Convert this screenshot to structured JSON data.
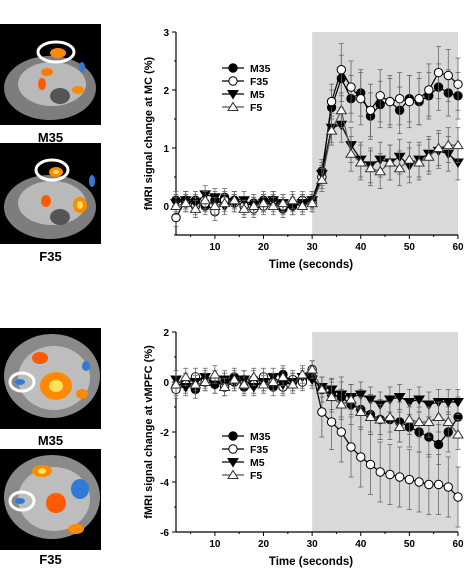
{
  "panels": [
    {
      "images": [
        {
          "label": "M35"
        },
        {
          "label": "F35"
        }
      ]
    },
    {
      "images": [
        {
          "label": "M35"
        },
        {
          "label": "F35"
        }
      ]
    }
  ],
  "colors": {
    "shade": "#d9d9d9",
    "activation_warm": "#ff8a00",
    "activation_hot": "#ffe15a",
    "activation_cold": "#2f7bd6",
    "roi_circle": "#ffffff"
  },
  "chart_data": [
    {
      "type": "line",
      "xlabel": "Time (seconds)",
      "ylabel": "fMRI signal change at MC (%)",
      "xlim": [
        2,
        60
      ],
      "ylim": [
        -0.5,
        3
      ],
      "xticks": [
        10,
        20,
        30,
        40,
        50,
        60
      ],
      "yticks": [
        0,
        1,
        2,
        3
      ],
      "shaded_region": [
        30,
        60
      ],
      "legend_position": "upper-left",
      "x": [
        2,
        4,
        6,
        8,
        10,
        12,
        14,
        16,
        18,
        20,
        22,
        24,
        26,
        28,
        30,
        32,
        34,
        36,
        38,
        40,
        42,
        44,
        46,
        48,
        50,
        52,
        54,
        56,
        58,
        60
      ],
      "series": [
        {
          "name": "M35",
          "marker": "filled-circle",
          "values": [
            0.1,
            0.05,
            0.1,
            0.0,
            0.1,
            0.15,
            0.1,
            0.0,
            0.05,
            0.1,
            0.05,
            -0.05,
            0.0,
            0.05,
            0.1,
            0.6,
            1.7,
            2.2,
            1.85,
            1.95,
            1.55,
            1.75,
            1.8,
            1.65,
            1.85,
            1.8,
            1.9,
            2.05,
            1.95,
            1.9
          ],
          "errors": [
            0.15,
            0.15,
            0.15,
            0.15,
            0.15,
            0.15,
            0.15,
            0.15,
            0.15,
            0.15,
            0.15,
            0.15,
            0.15,
            0.15,
            0.15,
            0.2,
            0.3,
            0.4,
            0.4,
            0.4,
            0.4,
            0.4,
            0.4,
            0.4,
            0.4,
            0.4,
            0.4,
            0.4,
            0.4,
            0.4
          ]
        },
        {
          "name": "F35",
          "marker": "open-circle",
          "values": [
            -0.2,
            0.1,
            0.0,
            0.05,
            -0.1,
            0.1,
            0.05,
            0.0,
            -0.05,
            0.0,
            0.1,
            0.0,
            0.05,
            0.1,
            0.05,
            0.5,
            1.8,
            2.35,
            2.05,
            1.85,
            1.65,
            1.9,
            1.8,
            1.85,
            1.8,
            1.85,
            2.0,
            2.3,
            2.25,
            2.1
          ],
          "errors": [
            0.15,
            0.15,
            0.15,
            0.15,
            0.15,
            0.15,
            0.15,
            0.15,
            0.15,
            0.15,
            0.15,
            0.15,
            0.15,
            0.15,
            0.15,
            0.2,
            0.3,
            0.45,
            0.45,
            0.45,
            0.45,
            0.45,
            0.45,
            0.45,
            0.45,
            0.45,
            0.45,
            0.45,
            0.45,
            0.45
          ]
        },
        {
          "name": "M5",
          "marker": "filled-triangle-down",
          "values": [
            0.05,
            0.1,
            0.05,
            0.2,
            0.15,
            0.0,
            0.05,
            0.1,
            0.0,
            0.05,
            0.1,
            0.05,
            0.0,
            0.05,
            0.1,
            0.55,
            1.35,
            1.4,
            1.05,
            0.8,
            0.7,
            0.8,
            0.75,
            0.85,
            0.7,
            0.8,
            0.9,
            0.95,
            0.9,
            0.75
          ],
          "errors": [
            0.15,
            0.15,
            0.15,
            0.15,
            0.15,
            0.15,
            0.15,
            0.15,
            0.15,
            0.15,
            0.15,
            0.15,
            0.15,
            0.15,
            0.15,
            0.2,
            0.25,
            0.3,
            0.3,
            0.3,
            0.3,
            0.3,
            0.3,
            0.3,
            0.3,
            0.3,
            0.3,
            0.3,
            0.3,
            0.3
          ]
        },
        {
          "name": "F5",
          "marker": "open-triangle-up",
          "values": [
            0.0,
            0.05,
            -0.05,
            0.1,
            0.0,
            0.05,
            0.1,
            -0.05,
            0.0,
            0.05,
            0.0,
            0.05,
            0.1,
            0.0,
            0.05,
            0.45,
            1.3,
            1.65,
            0.9,
            0.75,
            0.65,
            0.6,
            0.75,
            0.65,
            0.8,
            0.75,
            0.85,
            1.0,
            1.05,
            1.05
          ],
          "errors": [
            0.15,
            0.15,
            0.15,
            0.15,
            0.15,
            0.15,
            0.15,
            0.15,
            0.15,
            0.15,
            0.15,
            0.15,
            0.15,
            0.15,
            0.15,
            0.2,
            0.25,
            0.3,
            0.3,
            0.3,
            0.3,
            0.3,
            0.3,
            0.3,
            0.3,
            0.3,
            0.3,
            0.3,
            0.3,
            0.3
          ]
        }
      ]
    },
    {
      "type": "line",
      "xlabel": "Time (seconds)",
      "ylabel": "fMRI signal change at vMPFC (%)",
      "xlim": [
        2,
        60
      ],
      "ylim": [
        -6,
        2
      ],
      "xticks": [
        10,
        20,
        30,
        40,
        50,
        60
      ],
      "yticks": [
        -6,
        -4,
        -2,
        0,
        2
      ],
      "shaded_region": [
        30,
        60
      ],
      "legend_position": "lower-left",
      "x": [
        2,
        4,
        6,
        8,
        10,
        12,
        14,
        16,
        18,
        20,
        22,
        24,
        26,
        28,
        30,
        32,
        34,
        36,
        38,
        40,
        42,
        44,
        46,
        48,
        50,
        52,
        54,
        56,
        58,
        60
      ],
      "series": [
        {
          "name": "M35",
          "marker": "filled-circle",
          "values": [
            -0.2,
            0.0,
            -0.3,
            0.1,
            -0.1,
            0.0,
            0.2,
            -0.2,
            0.1,
            0.0,
            -0.2,
            0.3,
            0.0,
            0.1,
            0.2,
            -0.3,
            -0.5,
            -0.6,
            -0.9,
            -1.1,
            -1.3,
            -1.5,
            -1.5,
            -1.6,
            -1.8,
            -2.0,
            -2.2,
            -2.5,
            -2.0,
            -1.4
          ],
          "errors": [
            0.35,
            0.35,
            0.35,
            0.35,
            0.35,
            0.35,
            0.35,
            0.35,
            0.35,
            0.35,
            0.35,
            0.35,
            0.35,
            0.35,
            0.35,
            0.5,
            0.6,
            0.8,
            0.8,
            0.8,
            0.8,
            0.8,
            0.8,
            0.8,
            0.8,
            0.8,
            0.8,
            0.8,
            0.8,
            0.8
          ]
        },
        {
          "name": "F35",
          "marker": "open-circle",
          "values": [
            -0.3,
            -0.1,
            0.2,
            0.0,
            0.1,
            -0.2,
            0.0,
            0.1,
            -0.1,
            0.2,
            0.0,
            -0.2,
            0.1,
            0.0,
            0.5,
            -1.2,
            -1.6,
            -2.0,
            -2.6,
            -3.0,
            -3.3,
            -3.6,
            -3.7,
            -3.8,
            -3.9,
            -4.0,
            -4.1,
            -4.1,
            -4.2,
            -4.6
          ],
          "errors": [
            0.35,
            0.35,
            0.35,
            0.35,
            0.35,
            0.35,
            0.35,
            0.35,
            0.35,
            0.35,
            0.35,
            0.35,
            0.35,
            0.35,
            0.35,
            1.0,
            1.1,
            1.2,
            1.2,
            1.2,
            1.2,
            1.2,
            1.2,
            1.2,
            1.2,
            1.2,
            1.2,
            1.2,
            1.2,
            1.2
          ]
        },
        {
          "name": "M5",
          "marker": "filled-triangle-down",
          "values": [
            0.1,
            -0.2,
            0.0,
            0.2,
            -0.1,
            0.1,
            0.0,
            0.1,
            -0.2,
            0.0,
            0.2,
            -0.1,
            0.0,
            0.2,
            0.1,
            -0.2,
            -0.3,
            -0.5,
            -0.6,
            -0.5,
            -0.7,
            -0.9,
            -0.7,
            -0.6,
            -0.8,
            -0.7,
            -0.9,
            -0.8,
            -0.8,
            -0.8
          ],
          "errors": [
            0.35,
            0.35,
            0.35,
            0.35,
            0.35,
            0.35,
            0.35,
            0.35,
            0.35,
            0.35,
            0.35,
            0.35,
            0.35,
            0.35,
            0.35,
            0.4,
            0.45,
            0.5,
            0.5,
            0.5,
            0.5,
            0.5,
            0.5,
            0.5,
            0.5,
            0.5,
            0.5,
            0.5,
            0.5,
            0.5
          ]
        },
        {
          "name": "F5",
          "marker": "open-triangle-up",
          "values": [
            -0.1,
            0.2,
            -0.1,
            0.0,
            0.3,
            -0.2,
            0.1,
            -0.1,
            0.2,
            -0.1,
            0.0,
            0.2,
            -0.1,
            0.3,
            0.5,
            -0.3,
            -0.6,
            -0.9,
            -0.7,
            -1.2,
            -1.4,
            -1.5,
            -1.4,
            -1.8,
            -1.5,
            -1.6,
            -1.6,
            -1.4,
            -1.6,
            -2.1
          ],
          "errors": [
            0.35,
            0.35,
            0.35,
            0.35,
            0.35,
            0.35,
            0.35,
            0.35,
            0.35,
            0.35,
            0.35,
            0.35,
            0.35,
            0.35,
            0.35,
            0.5,
            0.6,
            0.6,
            0.6,
            0.6,
            0.6,
            0.6,
            0.6,
            0.6,
            0.6,
            0.6,
            0.6,
            0.6,
            0.6,
            0.6
          ]
        }
      ]
    }
  ]
}
